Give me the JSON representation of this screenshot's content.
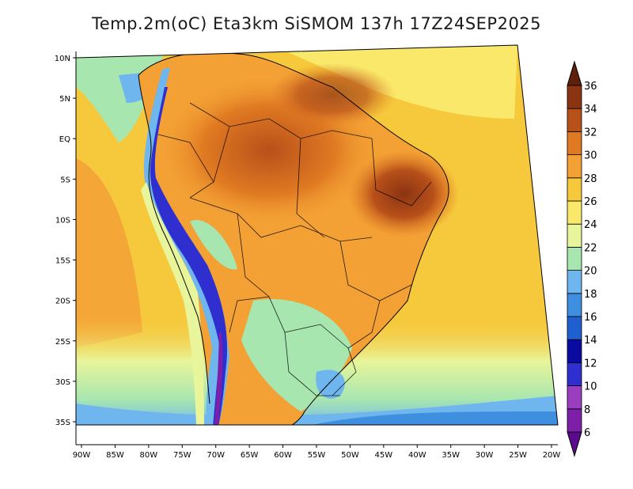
{
  "title": "Temp.2m(oC) Eta3km SiSMOM 137h 17Z24SEP2025",
  "map": {
    "lon_range": [
      -90,
      -20
    ],
    "lat_range": [
      -38,
      12
    ],
    "x_ticks": [
      "90W",
      "85W",
      "80W",
      "75W",
      "70W",
      "65W",
      "60W",
      "55W",
      "50W",
      "45W",
      "40W",
      "35W",
      "30W",
      "25W",
      "20W"
    ],
    "y_ticks": [
      "10N",
      "5N",
      "EQ",
      "5S",
      "10S",
      "15S",
      "20S",
      "25S",
      "30S",
      "35S"
    ],
    "x_tick_values": [
      -90,
      -85,
      -80,
      -75,
      -70,
      -65,
      -60,
      -55,
      -50,
      -45,
      -40,
      -35,
      -30,
      -25,
      -20
    ],
    "y_tick_values": [
      10,
      5,
      0,
      -5,
      -10,
      -15,
      -20,
      -25,
      -30,
      -35
    ]
  },
  "colorbar": {
    "labels": [
      "6",
      "8",
      "10",
      "12",
      "14",
      "16",
      "18",
      "20",
      "22",
      "24",
      "26",
      "28",
      "30",
      "32",
      "34",
      "36"
    ],
    "colors": [
      "#5a0a8c",
      "#7d1fa8",
      "#9a3ec0",
      "#2f2fd0",
      "#0a0aa0",
      "#1f5fd0",
      "#3f8fe0",
      "#6fb6ee",
      "#a8e6b0",
      "#e8f59a",
      "#f9e86a",
      "#f6c83c",
      "#f3a035",
      "#e07a22",
      "#b8501a",
      "#8a3412",
      "#5e200a"
    ]
  }
}
